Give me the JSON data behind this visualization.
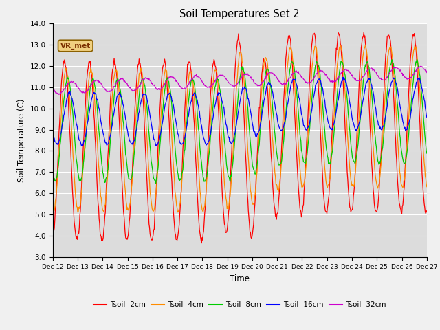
{
  "title": "Soil Temperatures Set 2",
  "xlabel": "Time",
  "ylabel": "Soil Temperature (C)",
  "ylim": [
    3.0,
    14.0
  ],
  "yticks": [
    3.0,
    4.0,
    5.0,
    6.0,
    7.0,
    8.0,
    9.0,
    10.0,
    11.0,
    12.0,
    13.0,
    14.0
  ],
  "colors": {
    "tsoil_2cm": "#FF0000",
    "tsoil_4cm": "#FF8C00",
    "tsoil_8cm": "#00CC00",
    "tsoil_16cm": "#0000FF",
    "tsoil_32cm": "#CC00CC"
  },
  "legend_labels": [
    "Tsoil -2cm",
    "Tsoil -4cm",
    "Tsoil -8cm",
    "Tsoil -16cm",
    "Tsoil -32cm"
  ],
  "x_tick_labels": [
    "Dec 12",
    "Dec 13",
    "Dec 14",
    "Dec 15",
    "Dec 16",
    "Dec 17",
    "Dec 18",
    "Dec 19",
    "Dec 20",
    "Dec 21",
    "Dec 22",
    "Dec 23",
    "Dec 24",
    "Dec 25",
    "Dec 26",
    "Dec 27"
  ],
  "annotation_text": "VR_met",
  "fig_facecolor": "#F0F0F0",
  "ax_facecolor": "#DCDCDC",
  "grid_color": "#FFFFFF"
}
